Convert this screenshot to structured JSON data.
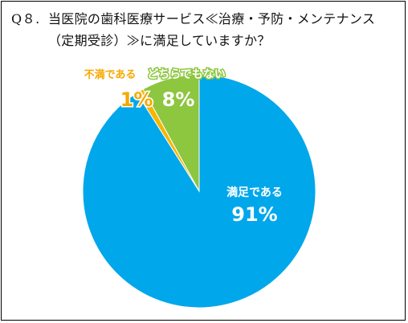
{
  "question": {
    "number": "Q８.",
    "line1": "当医院の歯科医療サービス≪治療・予防・メンテナンス",
    "line2": "（定期受診）≫に満足していますか？"
  },
  "colors": {
    "satisfied": "#00A7EB",
    "neutral": "#8DC63F",
    "unsatisfied": "#F7B500",
    "white_text": "#FFFFFF",
    "orange_text": "#F7A800"
  },
  "chart_data": {
    "type": "pie",
    "title": "当医院の歯科医療サービス≪治療・予防・メンテナンス（定期受診）≫に満足していますか？",
    "slices": [
      {
        "label": "満足である",
        "value": 91,
        "value_label": "91%"
      },
      {
        "label": "不満である",
        "value": 1,
        "value_label": "1%"
      },
      {
        "label": "どちらでもない",
        "value": 8,
        "value_label": "8%"
      }
    ],
    "start_angle_deg": 0,
    "direction": "clockwise",
    "legend": "none"
  }
}
